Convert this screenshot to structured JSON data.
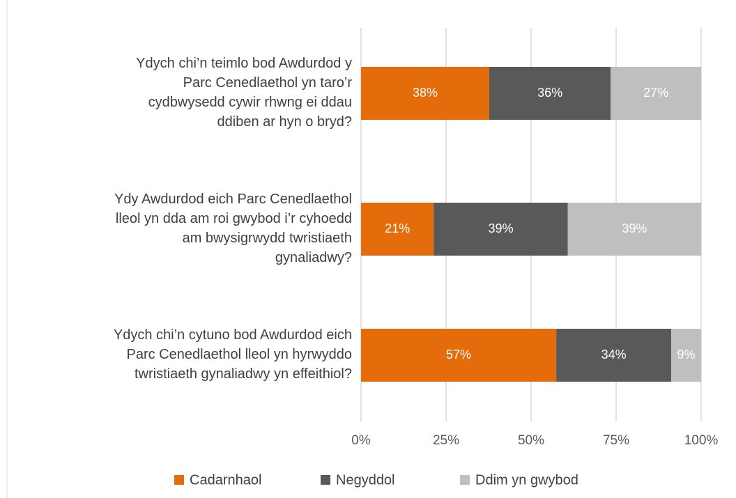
{
  "chart_data": {
    "type": "stacked-barh",
    "categories": [
      [
        "Ydych chi’n teimlo bod Awdurdod y",
        "Parc Cenedlaethol yn taro’r",
        "cydbwysedd cywir rhwng ei ddau",
        "ddiben ar hyn o bryd?"
      ],
      [
        "Ydy Awdurdod eich Parc Cenedlaethol",
        "lleol yn dda am roi gwybod i’r cyhoedd",
        "am bwysigrwydd twristiaeth",
        "gynaliadwy?"
      ],
      [
        "Ydych chi’n cytuno bod Awdurdod eich",
        "Parc Cenedlaethol lleol yn hyrwyddo",
        "twristiaeth gynaliadwy yn effeithiol?"
      ]
    ],
    "series": [
      {
        "name": "Cadarnhaol",
        "color": "#e46c0a",
        "values": [
          37.7,
          21.4,
          57.4
        ],
        "value_labels": [
          "38%",
          "21%",
          "57%"
        ]
      },
      {
        "name": "Negyddol",
        "color": "#595959",
        "values": [
          35.7,
          39.4,
          33.8
        ],
        "value_labels": [
          "36%",
          "39%",
          "34%"
        ]
      },
      {
        "name": "Ddim yn gwybod",
        "color": "#bfbfbf",
        "values": [
          26.6,
          39.2,
          8.8
        ],
        "value_labels": [
          "27%",
          "39%",
          "9%"
        ]
      }
    ],
    "xlim": [
      0,
      100
    ],
    "xticks": [
      {
        "value": 0,
        "label": "0%"
      },
      {
        "value": 25,
        "label": "25%"
      },
      {
        "value": 50,
        "label": "50%"
      },
      {
        "value": 75,
        "label": "75%"
      },
      {
        "value": 100,
        "label": "100%"
      }
    ],
    "grid": true,
    "legend": "bottom"
  }
}
